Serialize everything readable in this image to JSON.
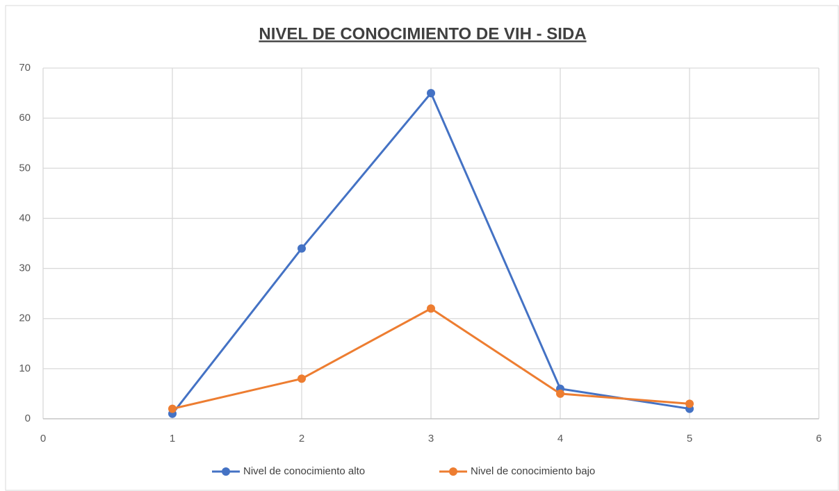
{
  "chart_data": {
    "type": "line",
    "title": "NIVEL DE CONOCIMIENTO DE VIH - SIDA",
    "x": [
      1,
      2,
      3,
      4,
      5
    ],
    "series": [
      {
        "name": "Nivel de conocimiento alto",
        "color": "#4472c4",
        "values": [
          1,
          34,
          65,
          6,
          2
        ]
      },
      {
        "name": "Nivel de conocimiento bajo",
        "color": "#ed7d31",
        "values": [
          2,
          8,
          22,
          5,
          3
        ]
      }
    ],
    "xlim": [
      0,
      6
    ],
    "xticks": [
      0,
      1,
      2,
      3,
      4,
      5,
      6
    ],
    "ylim": [
      0,
      70
    ],
    "yticks": [
      0,
      10,
      20,
      30,
      40,
      50,
      60,
      70
    ],
    "grid": true,
    "legend": "bottom"
  }
}
